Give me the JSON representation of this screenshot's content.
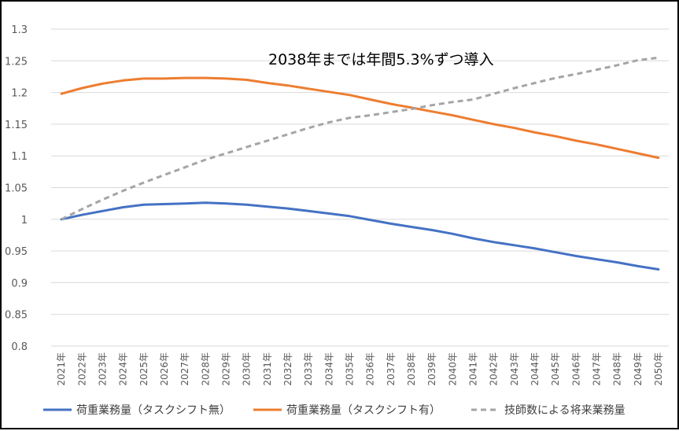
{
  "chart_data": {
    "type": "line",
    "annotation": "2038年までは年間5.3%ずつ導入",
    "categories": [
      "2021年",
      "2022年",
      "2023年",
      "2024年",
      "2025年",
      "2026年",
      "2027年",
      "2028年",
      "2029年",
      "2030年",
      "2031年",
      "2032年",
      "2033年",
      "2034年",
      "2035年",
      "2036年",
      "2037年",
      "2038年",
      "2039年",
      "2040年",
      "2041年",
      "2042年",
      "2043年",
      "2044年",
      "2045年",
      "2046年",
      "2047年",
      "2048年",
      "2049年",
      "2050年"
    ],
    "y_ticks": [
      "0.8",
      "0.85",
      "0.9",
      "0.95",
      "1",
      "1.05",
      "1.1",
      "1.15",
      "1.2",
      "1.25",
      "1.3"
    ],
    "ylim": [
      0.8,
      1.3
    ],
    "grid": true,
    "legend_position": "bottom",
    "series": [
      {
        "name": "荷重業務量（タスクシフト無）",
        "color": "#4472C4",
        "dash": false,
        "values": [
          1.0,
          1.007,
          1.013,
          1.019,
          1.023,
          1.024,
          1.025,
          1.026,
          1.025,
          1.023,
          1.02,
          1.017,
          1.013,
          1.009,
          1.005,
          0.999,
          0.993,
          0.988,
          0.983,
          0.977,
          0.97,
          0.964,
          0.959,
          0.954,
          0.948,
          0.942,
          0.937,
          0.932,
          0.926,
          0.921
        ]
      },
      {
        "name": "荷重業務量（タスクシフト有）",
        "color": "#ED7D31",
        "dash": false,
        "values": [
          1.198,
          1.207,
          1.214,
          1.219,
          1.222,
          1.222,
          1.223,
          1.223,
          1.222,
          1.22,
          1.215,
          1.211,
          1.206,
          1.201,
          1.196,
          1.189,
          1.182,
          1.176,
          1.17,
          1.164,
          1.157,
          1.15,
          1.144,
          1.137,
          1.131,
          1.124,
          1.118,
          1.111,
          1.104,
          1.097
        ]
      },
      {
        "name": "技師数による将来業務量",
        "color": "#A5A5A5",
        "dash": true,
        "values": [
          1.0,
          1.016,
          1.031,
          1.045,
          1.058,
          1.07,
          1.082,
          1.094,
          1.104,
          1.114,
          1.124,
          1.134,
          1.144,
          1.153,
          1.16,
          1.164,
          1.169,
          1.174,
          1.18,
          1.185,
          1.189,
          1.198,
          1.207,
          1.215,
          1.223,
          1.229,
          1.236,
          1.243,
          1.251,
          1.255
        ]
      }
    ]
  }
}
